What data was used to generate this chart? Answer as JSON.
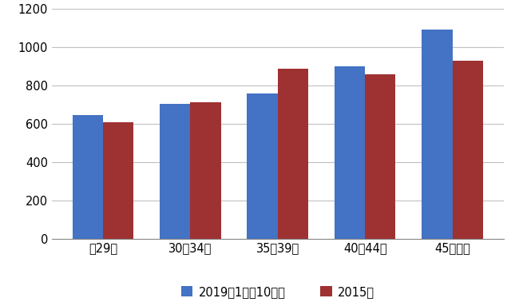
{
  "categories": [
    "〖29歳",
    "30～34歳",
    "35～39歳",
    "40～44歳",
    "45歳以上"
  ],
  "series_2019": [
    648,
    705,
    758,
    900,
    1095
  ],
  "series_2015": [
    607,
    713,
    888,
    858,
    930
  ],
  "color_2019": "#4472C4",
  "color_2015": "#9E3132",
  "legend_2019": "2019年1月～10月末",
  "legend_2015": "2015年",
  "ylim": [
    0,
    1200
  ],
  "yticks": [
    0,
    200,
    400,
    600,
    800,
    1000,
    1200
  ],
  "bar_width": 0.35,
  "background_color": "#ffffff",
  "grid_color": "#c0c0c0"
}
